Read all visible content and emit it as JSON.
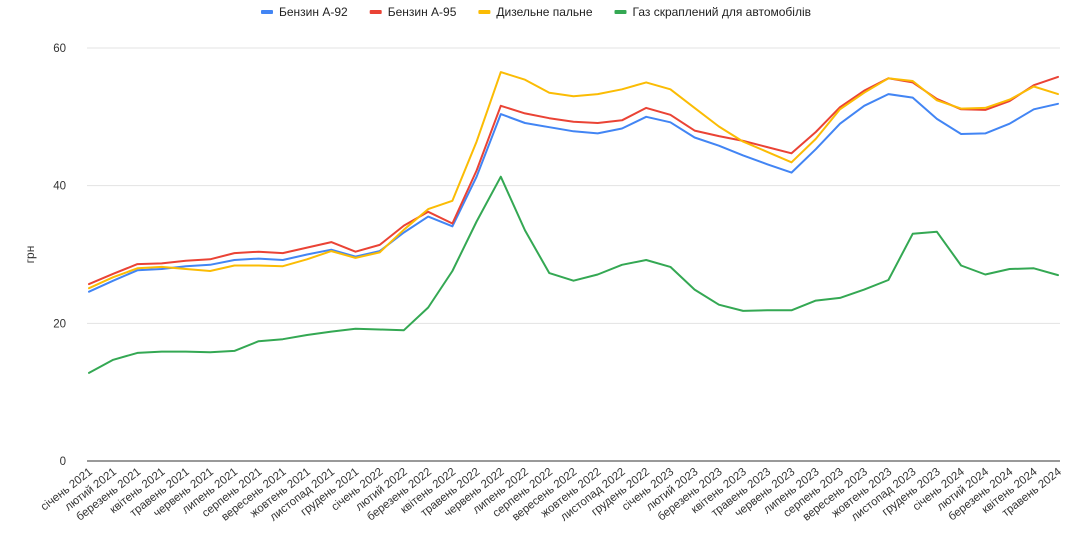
{
  "chart_data": {
    "type": "line",
    "title": "",
    "xlabel": "",
    "ylabel": "грн",
    "ylim": [
      0,
      60
    ],
    "yticks": [
      0,
      20,
      40,
      60
    ],
    "grid": true,
    "legend": "top-center",
    "categories": [
      "січень 2021",
      "лютий 2021",
      "березень 2021",
      "квітень 2021",
      "травень 2021",
      "червень 2021",
      "липень 2021",
      "серпень 2021",
      "вересень 2021",
      "жовтень 2021",
      "листопад 2021",
      "грудень 2021",
      "січень 2022",
      "лютий 2022",
      "березень 2022",
      "квітень 2022",
      "травень 2022",
      "червень 2022",
      "липень 2022",
      "серпень 2022",
      "вересень 2022",
      "жовтень 2022",
      "листопад 2022",
      "грудень 2022",
      "січень 2023",
      "лютий 2023",
      "березень 2023",
      "квітень 2023",
      "травень 2023",
      "червень 2023",
      "липень 2023",
      "серпень 2023",
      "вересень 2023",
      "жовтень 2023",
      "листопад 2023",
      "грудень 2023",
      "січень 2024",
      "лютий 2024",
      "березень 2024",
      "квітень 2024",
      "травень 2024"
    ],
    "series": [
      {
        "name": "Бензин А-92",
        "color": "#4285f4",
        "values": [
          24.6,
          26.2,
          27.7,
          27.9,
          28.3,
          28.5,
          29.2,
          29.4,
          29.2,
          30.0,
          30.7,
          29.7,
          30.5,
          33.2,
          35.5,
          34.1,
          41.3,
          50.4,
          49.1,
          48.5,
          47.9,
          47.6,
          48.3,
          50.0,
          49.2,
          47.0,
          45.8,
          44.4,
          43.1,
          41.9,
          45.3,
          49.0,
          51.6,
          53.3,
          52.8,
          49.7,
          47.5,
          47.6,
          49.0,
          51.1,
          51.9
        ]
      },
      {
        "name": "Бензин А-95",
        "color": "#ea4335",
        "values": [
          25.7,
          27.2,
          28.6,
          28.7,
          29.1,
          29.3,
          30.2,
          30.4,
          30.2,
          31.0,
          31.8,
          30.4,
          31.4,
          34.2,
          36.2,
          34.5,
          42.2,
          51.6,
          50.5,
          49.8,
          49.3,
          49.1,
          49.5,
          51.3,
          50.3,
          48.0,
          47.2,
          46.5,
          45.6,
          44.7,
          47.8,
          51.4,
          53.8,
          55.6,
          55.0,
          52.6,
          51.1,
          51.0,
          52.3,
          54.6,
          55.8
        ]
      },
      {
        "name": "Дизельне пальне",
        "color": "#fbbc04",
        "values": [
          25.1,
          26.7,
          28.0,
          28.2,
          27.9,
          27.6,
          28.4,
          28.4,
          28.3,
          29.3,
          30.5,
          29.5,
          30.3,
          33.6,
          36.6,
          37.8,
          46.4,
          56.5,
          55.4,
          53.5,
          53.0,
          53.3,
          54.0,
          55.0,
          54.0,
          51.3,
          48.6,
          46.4,
          44.9,
          43.4,
          46.8,
          51.1,
          53.5,
          55.6,
          55.2,
          52.4,
          51.2,
          51.3,
          52.5,
          54.4,
          53.3
        ]
      },
      {
        "name": "Газ скраплений для автомобілів",
        "color": "#34a853",
        "values": [
          12.8,
          14.7,
          15.7,
          15.9,
          15.9,
          15.8,
          16.0,
          17.4,
          17.7,
          18.3,
          18.8,
          19.2,
          19.1,
          19.0,
          22.3,
          27.6,
          34.8,
          41.3,
          33.5,
          27.3,
          26.2,
          27.1,
          28.5,
          29.2,
          28.2,
          24.9,
          22.7,
          21.8,
          21.9,
          21.9,
          23.3,
          23.7,
          24.9,
          26.3,
          33.0,
          33.3,
          28.4,
          27.1,
          27.9,
          28.0,
          27.0
        ]
      }
    ]
  }
}
